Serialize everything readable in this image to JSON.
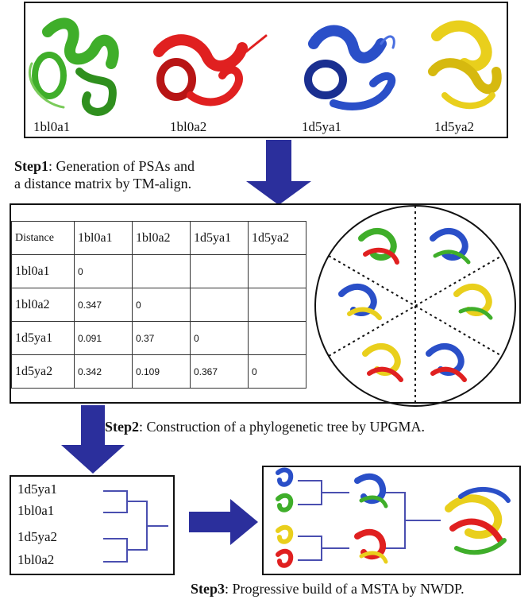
{
  "top_panel": {
    "structures": [
      {
        "name": "1bl0a1",
        "color": "#3fae2a"
      },
      {
        "name": "1bl0a2",
        "color": "#e02020"
      },
      {
        "name": "1d5ya1",
        "color": "#2a4fc8"
      },
      {
        "name": "1d5ya2",
        "color": "#e9cf1c"
      }
    ]
  },
  "step1": {
    "bold": "Step1",
    "text_line1": ": Generation of PSAs and",
    "text_line2": "a distance matrix by TM-align."
  },
  "matrix": {
    "corner": "Distance",
    "columns": [
      "1bl0a1",
      "1bl0a2",
      "1d5ya1",
      "1d5ya2"
    ],
    "rows": [
      {
        "label": "1bl0a1",
        "values": [
          "0",
          "",
          "",
          ""
        ]
      },
      {
        "label": "1bl0a2",
        "values": [
          "0.347",
          "0",
          "",
          ""
        ]
      },
      {
        "label": "1d5ya1",
        "values": [
          "0.091",
          "0.37",
          "0",
          ""
        ]
      },
      {
        "label": "1d5ya2",
        "values": [
          "0.342",
          "0.109",
          "0.367",
          "0"
        ]
      }
    ]
  },
  "step2": {
    "bold": "Step2",
    "text": ": Construction of a phylogenetic tree by UPGMA."
  },
  "tree": {
    "leaves": [
      "1d5ya1",
      "1bl0a1",
      "1d5ya2",
      "1bl0a2"
    ]
  },
  "step3": {
    "bold": "Step3",
    "text": ":  Progressive build of a MSTA by NWDP."
  },
  "colors": {
    "arrow": "#2b2f9c",
    "tree_line": "#4a4fb0"
  }
}
